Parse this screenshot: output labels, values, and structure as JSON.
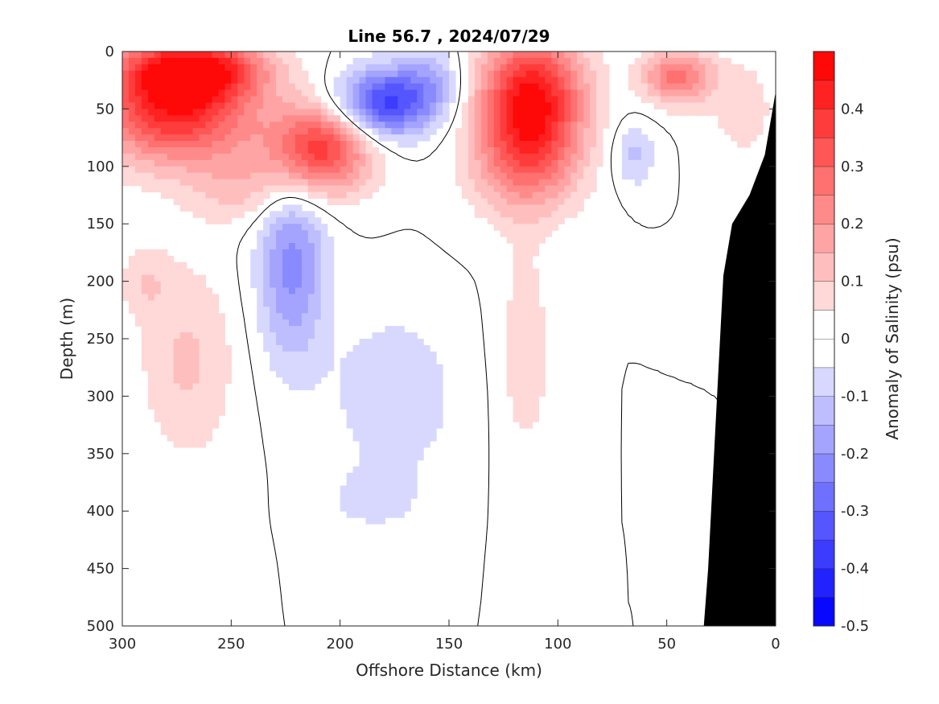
{
  "chart_data": {
    "type": "heatmap",
    "title": "Line 56.7 , 2024/07/29",
    "xlabel": "Offshore Distance (km)",
    "ylabel": "Depth (m)",
    "colorbar_label": "Anomaly of Salinity (psu)",
    "xlim": [
      300,
      0
    ],
    "ylim": [
      500,
      0
    ],
    "x_reversed": true,
    "y_reversed": true,
    "xticks": [
      300,
      250,
      200,
      150,
      100,
      50,
      0
    ],
    "xtick_labels": [
      "300",
      "250",
      "200",
      "150",
      "100",
      "50",
      "0"
    ],
    "yticks": [
      0,
      50,
      100,
      150,
      200,
      250,
      300,
      350,
      400,
      450,
      500
    ],
    "ytick_labels": [
      "0",
      "50",
      "100",
      "150",
      "200",
      "250",
      "300",
      "350",
      "400",
      "450",
      "500"
    ],
    "colorbar": {
      "range": [
        -0.5,
        0.5
      ],
      "levels": [
        -0.5,
        -0.45,
        -0.4,
        -0.35,
        -0.3,
        -0.25,
        -0.2,
        -0.15,
        -0.1,
        -0.05,
        0,
        0.05,
        0.1,
        0.15,
        0.2,
        0.25,
        0.3,
        0.35,
        0.4,
        0.45,
        0.5
      ],
      "ticks": [
        0.4,
        0.3,
        0.2,
        0.1,
        0,
        -0.1,
        -0.2,
        -0.3,
        -0.4,
        -0.5
      ],
      "tick_labels": [
        "0.4",
        "0.3",
        "0.2",
        "0.1",
        "0",
        "-0.1",
        "-0.2",
        "-0.3",
        "-0.4",
        "-0.5"
      ],
      "colormap": "blue-white-red",
      "low_color": "#0000ff",
      "zero_color": "#ffffff",
      "high_color": "#ff0000"
    },
    "zero_contour": true,
    "features": [
      {
        "sign": "positive",
        "peak": 0.45,
        "center_km": 275,
        "center_depth_m": 45,
        "radius_km": 45,
        "radius_depth_m": 65
      },
      {
        "sign": "positive",
        "peak": 0.4,
        "center_km": 210,
        "center_depth_m": 85,
        "radius_km": 30,
        "radius_depth_m": 50
      },
      {
        "sign": "positive",
        "peak": 0.3,
        "center_km": 265,
        "center_depth_m": 15,
        "radius_km": 40,
        "radius_depth_m": 30
      },
      {
        "sign": "positive",
        "peak": 0.1,
        "center_km": 245,
        "center_depth_m": 120,
        "radius_km": 30,
        "radius_depth_m": 40
      },
      {
        "sign": "positive",
        "peak": 0.11,
        "center_km": 270,
        "center_depth_m": 270,
        "radius_km": 28,
        "radius_depth_m": 110
      },
      {
        "sign": "positive",
        "peak": 0.08,
        "center_km": 290,
        "center_depth_m": 200,
        "radius_km": 15,
        "radius_depth_m": 40
      },
      {
        "sign": "negative",
        "peak": -0.38,
        "center_km": 180,
        "center_depth_m": 45,
        "radius_km": 28,
        "radius_depth_m": 38
      },
      {
        "sign": "negative",
        "peak": -0.22,
        "center_km": 222,
        "center_depth_m": 185,
        "radius_km": 20,
        "radius_depth_m": 110
      },
      {
        "sign": "negative",
        "peak": -0.1,
        "center_km": 175,
        "center_depth_m": 300,
        "radius_km": 35,
        "radius_depth_m": 90
      },
      {
        "sign": "negative",
        "peak": -0.08,
        "center_km": 185,
        "center_depth_m": 390,
        "radius_km": 25,
        "radius_depth_m": 30
      },
      {
        "sign": "negative",
        "peak": -0.12,
        "center_km": 158,
        "center_depth_m": 25,
        "radius_km": 18,
        "radius_depth_m": 40
      },
      {
        "sign": "positive",
        "peak": 0.46,
        "center_km": 112,
        "center_depth_m": 40,
        "radius_km": 30,
        "radius_depth_m": 70
      },
      {
        "sign": "positive",
        "peak": 0.2,
        "center_km": 115,
        "center_depth_m": 100,
        "radius_km": 32,
        "radius_depth_m": 60
      },
      {
        "sign": "positive",
        "peak": 0.09,
        "center_km": 115,
        "center_depth_m": 260,
        "radius_km": 15,
        "radius_depth_m": 120
      },
      {
        "sign": "positive",
        "peak": 0.28,
        "center_km": 45,
        "center_depth_m": 22,
        "radius_km": 20,
        "radius_depth_m": 30
      },
      {
        "sign": "positive",
        "peak": 0.08,
        "center_km": 15,
        "center_depth_m": 50,
        "radius_km": 20,
        "radius_depth_m": 60
      },
      {
        "sign": "negative",
        "peak": -0.12,
        "center_km": 65,
        "center_depth_m": 90,
        "radius_km": 12,
        "radius_depth_m": 35
      }
    ],
    "bathymetry_mask": [
      {
        "km": 33,
        "depth_m": 500
      },
      {
        "km": 31,
        "depth_m": 450
      },
      {
        "km": 28,
        "depth_m": 340
      },
      {
        "km": 24,
        "depth_m": 195
      },
      {
        "km": 20,
        "depth_m": 150
      },
      {
        "km": 12,
        "depth_m": 125
      },
      {
        "km": 5,
        "depth_m": 90
      },
      {
        "km": 0,
        "depth_m": 35
      },
      {
        "km": 0,
        "depth_m": 500
      }
    ],
    "mask_color": "#000000"
  }
}
